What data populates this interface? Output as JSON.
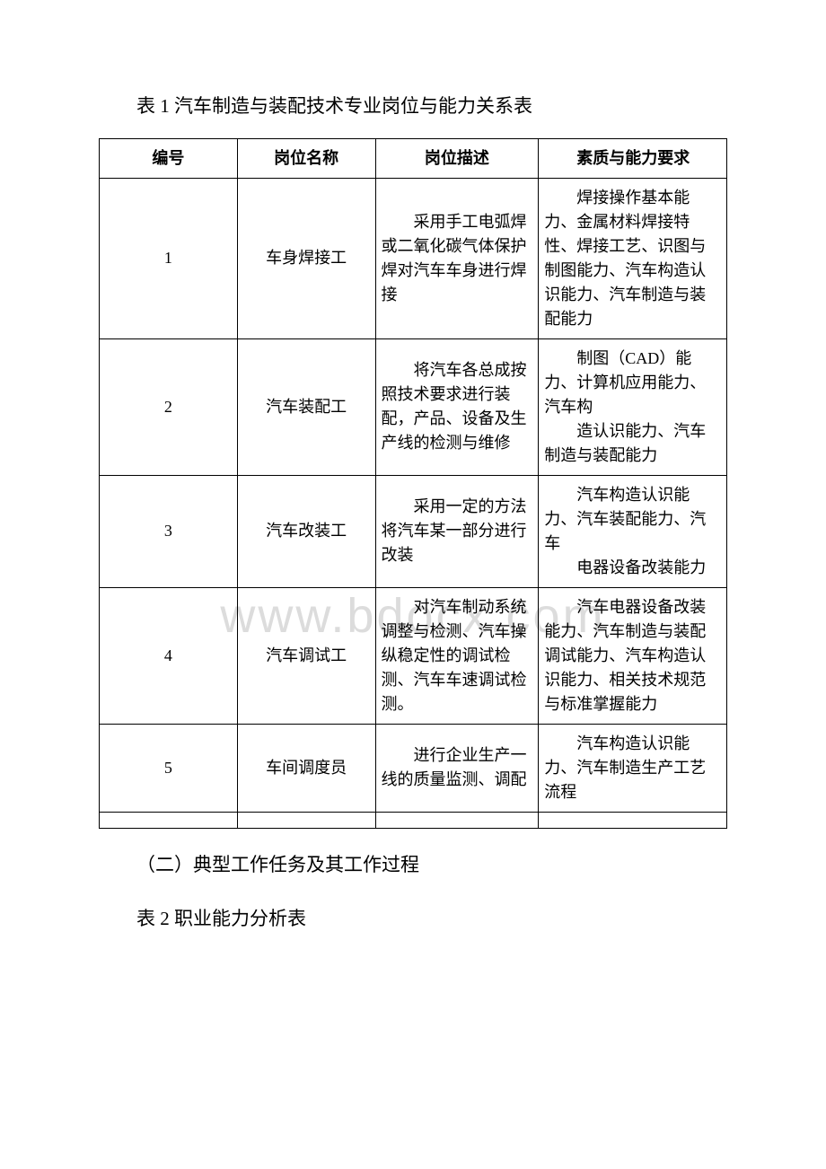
{
  "watermark_text": "www.bdocx.com",
  "title": "表 1 汽车制造与装配技术专业岗位与能力关系表",
  "subtitle1": "（二）典型工作任务及其工作过程",
  "subtitle2": "表 2 职业能力分析表",
  "columns": {
    "c1": "编号",
    "c2": "岗位名称",
    "c3": "岗位描述",
    "c4": "素质与能力要求"
  },
  "rows": [
    {
      "num": "1",
      "name": "车身焊接工",
      "desc": "采用手工电弧焊或二氧化碳气体保护焊对汽车车身进行焊接",
      "req": "焊接操作基本能力、金属材料焊接特性、焊接工艺、识图与制图能力、汽车构造认识能力、汽车制造与装配能力"
    },
    {
      "num": "2",
      "name": "汽车装配工",
      "desc": "将汽车各总成按照技术要求进行装配，产品、设备及生产线的检测与维修",
      "req_p1": "制图（CAD）能力、计算机应用能力、汽车构",
      "req_p2": "造认识能力、汽车制造与装配能力"
    },
    {
      "num": "3",
      "name": "汽车改装工",
      "desc": "采用一定的方法将汽车某一部分进行改装",
      "req_p1": "汽车构造认识能力、汽车装配能力、汽车",
      "req_p2": "电器设备改装能力"
    },
    {
      "num": "4",
      "name": "汽车调试工",
      "desc": "对汽车制动系统调整与检测、汽车操纵稳定性的调试检测、汽车车速调试检测。",
      "req": "汽车电器设备改装能力、汽车制造与装配调试能力、汽车构造认识能力、相关技术规范与标准掌握能力"
    },
    {
      "num": "5",
      "name": "车间调度员",
      "desc": "进行企业生产一线的质量监测、调配",
      "req": "汽车构造认识能力、汽车制造生产工艺流程"
    }
  ]
}
